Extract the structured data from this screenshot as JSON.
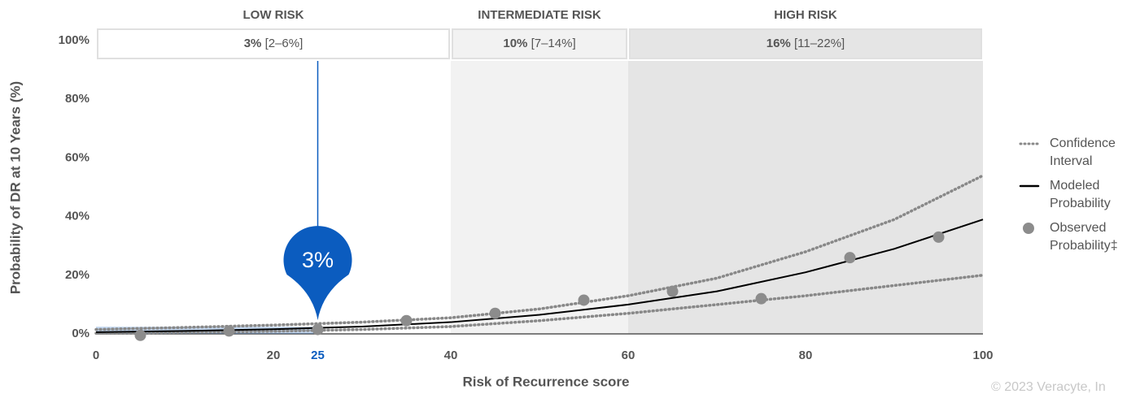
{
  "chart_data": {
    "type": "line",
    "x_label": "Risk of Recurrence score",
    "y_label": "Probability of DR at 10 Years (%)",
    "xlim": [
      0,
      100
    ],
    "ylim": [
      0,
      100
    ],
    "xticks": [
      0,
      20,
      40,
      60,
      80,
      100
    ],
    "yticks": [
      {
        "value": 0,
        "label": "0%"
      },
      {
        "value": 20,
        "label": "20%"
      },
      {
        "value": 40,
        "label": "40%"
      },
      {
        "value": 60,
        "label": "60%"
      },
      {
        "value": 80,
        "label": "80%"
      },
      {
        "value": 100,
        "label": "100%"
      }
    ],
    "bands": {
      "categories": [
        "LOW RISK",
        "INTERMEDIATE RISK",
        "HIGH RISK"
      ],
      "ranges": [
        [
          0,
          40
        ],
        [
          40,
          60
        ],
        [
          60,
          100
        ]
      ],
      "colors": [
        "#ffffff",
        "#f2f2f2",
        "#e5e5e5"
      ],
      "values": [
        3,
        10,
        16
      ],
      "value_labels": [
        "3%",
        "10%",
        "16%"
      ],
      "intervals": [
        "[2–6%]",
        "[7–14%]",
        "[11–22%]"
      ]
    },
    "x": [
      0,
      10,
      20,
      30,
      40,
      50,
      60,
      70,
      80,
      90,
      100
    ],
    "series": [
      {
        "name": "Confidence Interval",
        "color": "#888888",
        "style": "dotted",
        "upper": [
          1.5,
          2.2,
          3,
          4,
          5.5,
          8.5,
          13,
          19,
          28,
          39,
          54
        ],
        "lower": [
          0.2,
          0.5,
          0.9,
          1.5,
          2.5,
          4.5,
          7,
          10,
          13,
          16.5,
          20
        ]
      },
      {
        "name": "Modeled Probability",
        "color": "#000000",
        "style": "solid",
        "values": [
          0.6,
          1,
          1.6,
          2.5,
          4,
          6.5,
          10,
          14.5,
          21,
          29,
          39
        ]
      },
      {
        "name": "Observed Probability‡",
        "color": "#8c8c8c",
        "style": "points",
        "x": [
          5,
          15,
          25,
          35,
          45,
          55,
          65,
          75,
          85,
          95
        ],
        "values": [
          -0.5,
          1,
          1.5,
          4.5,
          7,
          11.5,
          14.5,
          12,
          26,
          33
        ]
      }
    ],
    "marker": {
      "x": 25,
      "value": 3,
      "label": "3%",
      "color": "#0b5cbf"
    },
    "copyright": "© 2023 Veracyte, In"
  }
}
